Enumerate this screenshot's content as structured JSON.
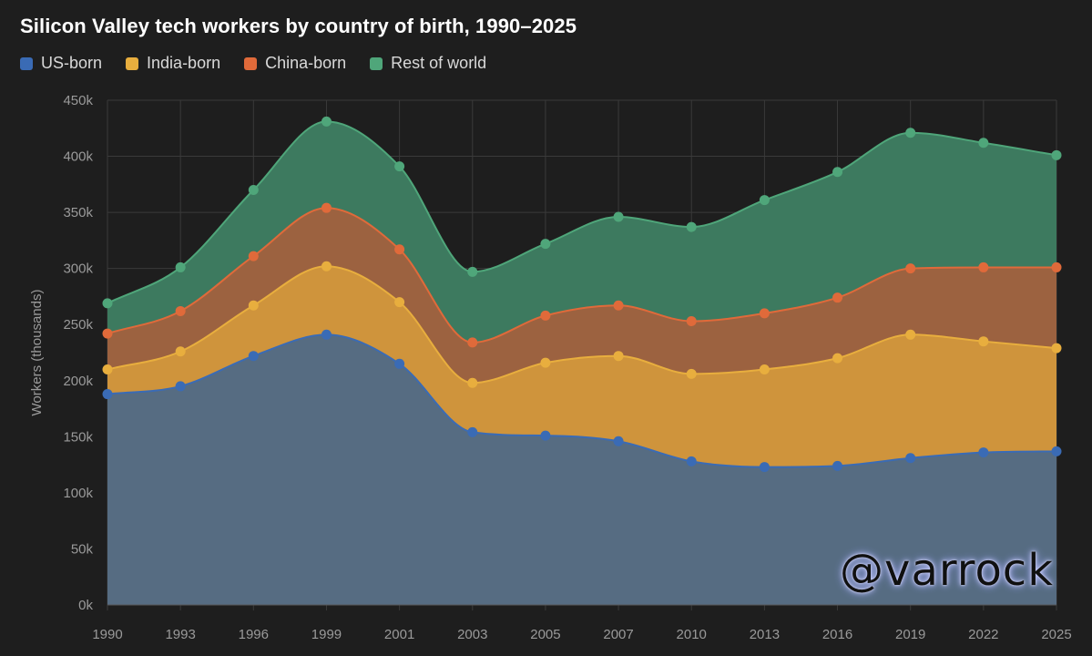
{
  "chart_data": {
    "type": "area",
    "stacked": true,
    "title": "Silicon Valley tech workers by country of birth, 1990–2025",
    "ylabel": "Workers (thousands)",
    "xlabel": "",
    "x": [
      "1990",
      "1993",
      "1996",
      "1999",
      "2001",
      "2003",
      "2005",
      "2007",
      "2010",
      "2013",
      "2016",
      "2019",
      "2022",
      "2025"
    ],
    "ylim": [
      0,
      450000
    ],
    "yticks": [
      0,
      50000,
      100000,
      150000,
      200000,
      250000,
      300000,
      350000,
      400000,
      450000
    ],
    "ytick_labels": [
      "0k",
      "50k",
      "100k",
      "150k",
      "200k",
      "250k",
      "300k",
      "350k",
      "400k",
      "450k"
    ],
    "grid": true,
    "legend_position": "top-left",
    "series": [
      {
        "name": "US-born",
        "color": "#3a6bb5",
        "fill": "#566c82",
        "values": [
          188000,
          195000,
          222000,
          241000,
          215000,
          154000,
          151000,
          146000,
          128000,
          123000,
          124000,
          131000,
          136000,
          137000
        ]
      },
      {
        "name": "India-born",
        "color": "#e8ae3e",
        "fill": "#cf943c",
        "values": [
          22000,
          31000,
          45000,
          61000,
          55000,
          44000,
          65000,
          76000,
          78000,
          87000,
          96000,
          110000,
          99000,
          92000
        ]
      },
      {
        "name": "China-born",
        "color": "#e06a3a",
        "fill": "#9c6240",
        "values": [
          32000,
          36000,
          44000,
          52000,
          47000,
          36000,
          42000,
          45000,
          47000,
          50000,
          54000,
          59000,
          66000,
          72000
        ]
      },
      {
        "name": "Rest of world",
        "color": "#4fa67a",
        "fill": "#3d7a5f",
        "values": [
          27000,
          39000,
          59000,
          77000,
          74000,
          63000,
          64000,
          79000,
          84000,
          101000,
          112000,
          121000,
          111000,
          100000
        ]
      }
    ]
  },
  "watermark": "@varrock"
}
